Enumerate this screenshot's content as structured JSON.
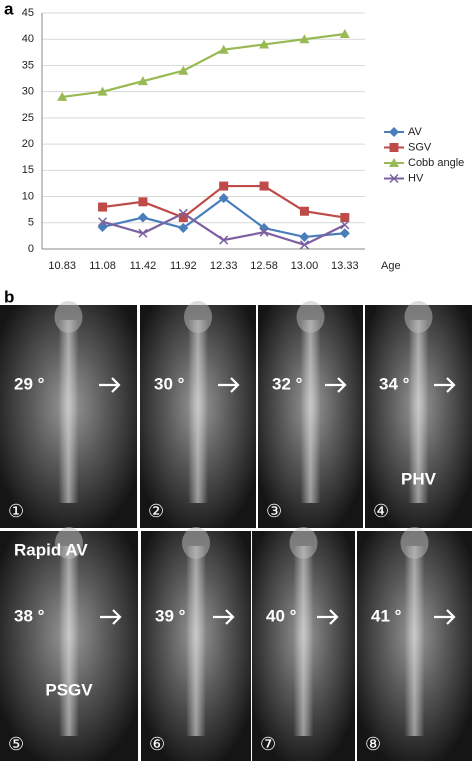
{
  "panel_a_label": "a",
  "panel_b_label": "b",
  "chart_data": {
    "type": "line",
    "x_label": "Age",
    "categories": [
      "10.83",
      "11.08",
      "11.42",
      "11.92",
      "12.33",
      "12.58",
      "13.00",
      "13.33"
    ],
    "series": [
      {
        "name": "AV",
        "color": "#4a7ebb",
        "marker": "diamond",
        "values": [
          null,
          4.2,
          6,
          4,
          9.7,
          4,
          2.3,
          3
        ]
      },
      {
        "name": "SGV",
        "color": "#be4b48",
        "marker": "square",
        "values": [
          null,
          8,
          9,
          6,
          12,
          12,
          7.2,
          6
        ]
      },
      {
        "name": "Cobb angle",
        "color": "#98b954",
        "marker": "triangle",
        "values": [
          29,
          30,
          32,
          34,
          38,
          39,
          40,
          41
        ]
      },
      {
        "name": "HV",
        "color": "#7d60a0",
        "marker": "x",
        "values": [
          null,
          5.2,
          3,
          6.8,
          1.7,
          3.2,
          0.8,
          4.6
        ]
      }
    ],
    "ylim": [
      0,
      45
    ],
    "yticks": [
      0,
      5,
      10,
      15,
      20,
      25,
      30,
      35,
      40,
      45
    ],
    "grid": true,
    "legend": "right"
  },
  "images": [
    {
      "number": "①",
      "angle": "29 °"
    },
    {
      "number": "②",
      "angle": "30 °"
    },
    {
      "number": "③",
      "angle": "32 °"
    },
    {
      "number": "④",
      "angle": "34 °",
      "bottom_note": "PHV"
    },
    {
      "number": "⑤",
      "angle": "38 °",
      "top_note": "Rapid AV",
      "bottom_note": "PSGV"
    },
    {
      "number": "⑥",
      "angle": "39 °"
    },
    {
      "number": "⑦",
      "angle": "40 °"
    },
    {
      "number": "⑧",
      "angle": "41 °"
    }
  ]
}
